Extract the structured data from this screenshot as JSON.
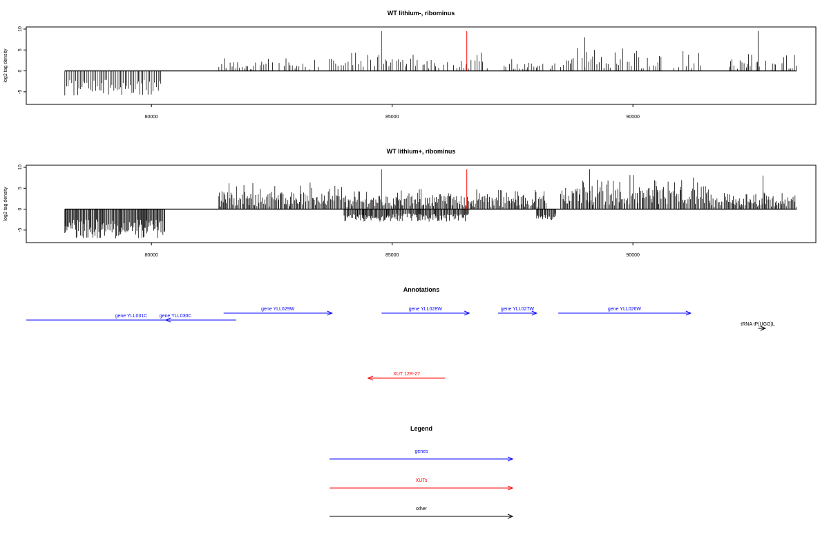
{
  "chart_data": [
    {
      "type": "bar",
      "title": "WT lithium-, ribominus",
      "ylabel": "log2 tag density",
      "xlim": [
        77400,
        93800
      ],
      "ylim": [
        -8,
        10.5
      ],
      "xticks": [
        80000,
        85000,
        90000
      ],
      "yticks": [
        -5,
        0,
        5,
        10
      ],
      "positive_ranges": [
        {
          "from": 81400,
          "to": 83500,
          "max": 3.5
        },
        {
          "from": 83700,
          "to": 87000,
          "max": 4.5
        },
        {
          "from": 87300,
          "to": 88400,
          "max": 3
        },
        {
          "from": 88500,
          "to": 91500,
          "max": 5.5
        },
        {
          "from": 92000,
          "to": 93400,
          "max": 4
        }
      ],
      "negative_ranges": [
        {
          "from": 78200,
          "to": 80200,
          "min": -6
        }
      ],
      "peaks": [
        {
          "x": 89000,
          "y": 8
        },
        {
          "x": 92600,
          "y": 9.5
        },
        {
          "x": 92400,
          "y": 4
        }
      ],
      "markers": [
        {
          "x": 84780,
          "y": 9.5,
          "color": "#ff0000"
        },
        {
          "x": 86550,
          "y": 9.5,
          "color": "#ff0000"
        }
      ]
    },
    {
      "type": "bar",
      "title": "WT lithium+, ribominus",
      "ylabel": "log2 tag density",
      "xlim": [
        77400,
        93800
      ],
      "ylim": [
        -8,
        10.5
      ],
      "xticks": [
        80000,
        85000,
        90000
      ],
      "yticks": [
        -5,
        0,
        5,
        10
      ],
      "positive_ranges": [
        {
          "from": 81400,
          "to": 84000,
          "max": 6.5
        },
        {
          "from": 84000,
          "to": 88200,
          "max": 5
        },
        {
          "from": 88500,
          "to": 91600,
          "max": 8.5
        },
        {
          "from": 91600,
          "to": 93400,
          "max": 4
        }
      ],
      "negative_ranges": [
        {
          "from": 78200,
          "to": 80300,
          "min": -7
        },
        {
          "from": 84000,
          "to": 86600,
          "min": -3
        },
        {
          "from": 88000,
          "to": 88400,
          "min": -3
        }
      ],
      "peaks": [
        {
          "x": 89100,
          "y": 9.5
        },
        {
          "x": 92700,
          "y": 8
        }
      ],
      "markers": [
        {
          "x": 84780,
          "y": 9.5,
          "color": "#ff0000"
        },
        {
          "x": 86550,
          "y": 9.5,
          "color": "#ff0000"
        }
      ]
    }
  ],
  "annotations": {
    "title": "Annotations",
    "features": [
      {
        "label": "gene YLL031C",
        "from": 81760,
        "to": 77400,
        "strand": "-",
        "color": "#0000ff",
        "row": 1,
        "no_arrow": true
      },
      {
        "label": "gene YLL030C",
        "from": 80700,
        "to": 80300,
        "strand": "-",
        "color": "#0000ff",
        "row": 1
      },
      {
        "label": "gene YLL029W",
        "from": 81500,
        "to": 83750,
        "strand": "+",
        "color": "#0000ff",
        "row": 0
      },
      {
        "label": "gene YLL028W",
        "from": 84780,
        "to": 86600,
        "strand": "+",
        "color": "#0000ff",
        "row": 0
      },
      {
        "label": "gene YLL027W",
        "from": 87200,
        "to": 88000,
        "strand": "+",
        "color": "#0000ff",
        "row": 0
      },
      {
        "label": "gene YLL026W",
        "from": 88450,
        "to": 91200,
        "strand": "+",
        "color": "#0000ff",
        "row": 0
      },
      {
        "label": "tRNA tP(UGG)L",
        "from": 92600,
        "to": 92750,
        "strand": "+",
        "color": "#000000",
        "row": 2
      },
      {
        "label": "XUT 12R-27",
        "from": 86100,
        "to": 84500,
        "strand": "-",
        "color": "#ff0000",
        "row": 3
      }
    ]
  },
  "legend": {
    "title": "Legend",
    "items": [
      {
        "label": "genes",
        "color": "#0000ff"
      },
      {
        "label": "XUTs",
        "color": "#ff0000"
      },
      {
        "label": "other",
        "color": "#000000"
      }
    ]
  }
}
